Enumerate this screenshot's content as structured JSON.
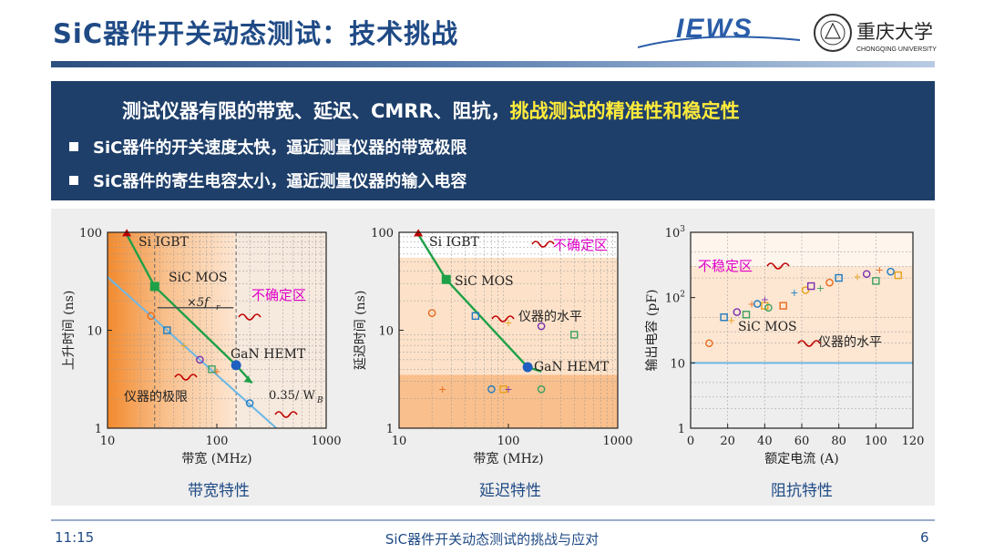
{
  "slide": {
    "title": "SiC器件开关动态测试：技术挑战",
    "logo_jews": "IEWS",
    "logo_cqu_text": "重庆大学",
    "logo_cqu_sub": "CHONGQING UNIVERSITY",
    "time": "11:15",
    "footer_title": "SiC器件开关动态测试的挑战与应对",
    "page_number": "6"
  },
  "box": {
    "head_plain": "测试仪器有限的带宽、延迟、CMRR、阻抗，",
    "head_highlight": "挑战测试的精准性和稳定性",
    "bullets": [
      "SiC器件的开关速度太快，逼近测量仪器的带宽极限",
      "SiC器件的寄生电容太小，逼近测量仪器的输入电容"
    ]
  },
  "colors": {
    "accent": "#1f4a85",
    "box_bg": "#1e3f6a",
    "highlight": "#ffeb3b",
    "magenta": "#e000c8"
  },
  "chart_data": [
    {
      "type": "scatter",
      "caption": "带宽特性",
      "xlabel": "带宽 (MHz)",
      "ylabel": "上升时间 (ns)",
      "xscale": "log",
      "yscale": "log",
      "xlim": [
        10,
        1000
      ],
      "ylim": [
        1,
        100
      ],
      "xticks": [
        "10",
        "100",
        "1000"
      ],
      "yticks": [
        "1",
        "10",
        "100"
      ],
      "annotations": [
        "Si IGBT",
        "SiC MOS",
        "GaN HEMT",
        "×5f",
        "r",
        "不确定区",
        "仪器的极限",
        "0.35/ W",
        "B"
      ],
      "series": [
        {
          "kind": "limit-line",
          "points": [
            [
              10,
              35
            ],
            [
              350,
              1
            ]
          ]
        },
        {
          "kind": "device-trend",
          "points": [
            [
              15,
              95
            ],
            [
              27,
              28
            ],
            [
              150,
              4.4
            ],
            [
              210,
              2.9
            ]
          ]
        },
        {
          "points": [
            [
              15,
              95
            ],
            [
              27,
              28
            ],
            [
              150,
              4.4
            ]
          ]
        },
        {
          "points": [
            [
              25,
              14
            ],
            [
              35,
              10
            ],
            [
              50,
              7
            ],
            [
              70,
              5
            ],
            [
              90,
              4
            ],
            [
              100,
              3.8
            ],
            [
              200,
              1.8
            ]
          ]
        }
      ]
    },
    {
      "type": "scatter",
      "caption": "延迟特性",
      "xlabel": "带宽 (MHz)",
      "ylabel": "延迟时间 (ns)",
      "xscale": "log",
      "yscale": "log",
      "xlim": [
        10,
        1000
      ],
      "ylim": [
        1,
        100
      ],
      "xticks": [
        "10",
        "100",
        "1000"
      ],
      "yticks": [
        "1",
        "10",
        "100"
      ],
      "annotations": [
        "Si IGBT",
        "SiC MOS",
        "GaN HEMT",
        "不确定区",
        "仪器的水平"
      ],
      "series": [
        {
          "kind": "device-trend",
          "points": [
            [
              15,
              95
            ],
            [
              27,
              33
            ],
            [
              150,
              4.2
            ],
            [
              200,
              3.8
            ]
          ]
        },
        {
          "points": [
            [
              15,
              95
            ],
            [
              27,
              33
            ],
            [
              150,
              4.2
            ]
          ]
        },
        {
          "points": [
            [
              20,
              15
            ],
            [
              50,
              14
            ],
            [
              100,
              12
            ],
            [
              200,
              11
            ],
            [
              400,
              9
            ],
            [
              25,
              2.5
            ],
            [
              70,
              2.5
            ],
            [
              90,
              2.5
            ],
            [
              100,
              2.5
            ],
            [
              200,
              2.5
            ]
          ]
        }
      ]
    },
    {
      "type": "scatter",
      "caption": "阻抗特性",
      "xlabel": "额定电流 (A)",
      "ylabel": "输出电容 (pF)",
      "xscale": "linear",
      "yscale": "log",
      "xlim": [
        0,
        120
      ],
      "ylim": [
        1,
        1000
      ],
      "xticks": [
        "0",
        "20",
        "40",
        "60",
        "80",
        "100",
        "120"
      ],
      "yticks": [
        "1",
        "10",
        "10^2",
        "10^3"
      ],
      "annotations": [
        "不稳定区",
        "SiC MOS",
        "仪器的水平"
      ],
      "series": [
        {
          "kind": "instrument-level",
          "value": 10
        },
        {
          "points": [
            [
              10,
              20
            ],
            [
              18,
              50
            ],
            [
              22,
              45
            ],
            [
              25,
              60
            ],
            [
              30,
              55
            ],
            [
              33,
              80
            ],
            [
              36,
              80
            ],
            [
              40,
              75
            ],
            [
              40,
              95
            ],
            [
              42,
              70
            ],
            [
              50,
              75
            ],
            [
              56,
              120
            ],
            [
              62,
              130
            ],
            [
              65,
              150
            ],
            [
              70,
              140
            ],
            [
              75,
              170
            ],
            [
              80,
              200
            ],
            [
              90,
              210
            ],
            [
              95,
              230
            ],
            [
              100,
              180
            ],
            [
              102,
              270
            ],
            [
              108,
              250
            ],
            [
              112,
              220
            ]
          ]
        }
      ]
    }
  ]
}
